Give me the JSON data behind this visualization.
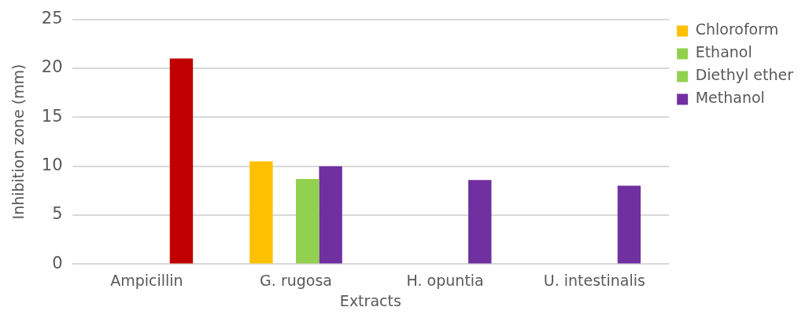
{
  "chart_data": {
    "type": "bar",
    "xlabel": "Extracts",
    "ylabel": "Inhibition zone (mm)",
    "categories": [
      "Ampicillin",
      "G. rugosa",
      "H. opuntia",
      "U. intestinalis"
    ],
    "series": [
      {
        "name": "Chloroform",
        "color": "#ffc000",
        "values": [
          null,
          10.5,
          0,
          0
        ]
      },
      {
        "name": "Ethanol",
        "color": "#92d050",
        "values": [
          null,
          0,
          0,
          0
        ]
      },
      {
        "name": "Diethyl ether",
        "color": "#92d050",
        "values": [
          null,
          8.7,
          0,
          0
        ]
      },
      {
        "name": "Methanol",
        "color": "#7030a0",
        "colors": [
          "#c00000",
          "#7030a0",
          "#7030a0",
          "#7030a0"
        ],
        "values": [
          21,
          10,
          8.6,
          8
        ]
      }
    ],
    "ylim": [
      0,
      25
    ],
    "yticks": [
      0,
      5,
      10,
      15,
      20,
      25
    ],
    "grid": "y",
    "legend": "top right"
  }
}
